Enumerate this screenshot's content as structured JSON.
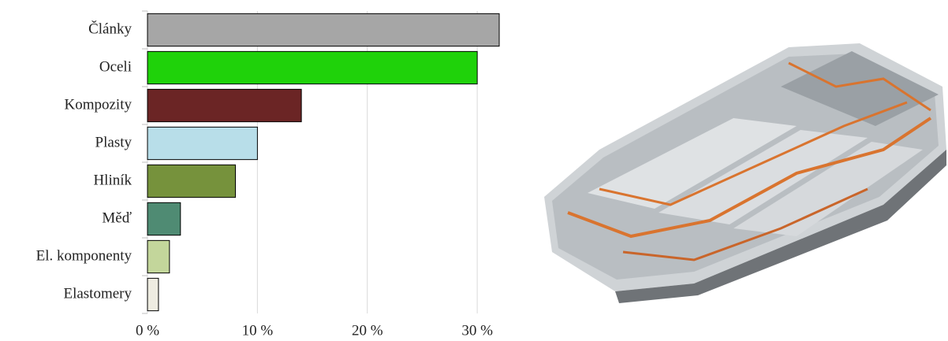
{
  "chart_data": {
    "type": "bar",
    "orientation": "horizontal",
    "categories": [
      "Články",
      "Oceli",
      "Kompozity",
      "Plasty",
      "Hliník",
      "Měď",
      "El. komponenty",
      "Elastomery"
    ],
    "values": [
      32,
      30,
      14,
      10,
      8,
      3,
      2,
      1
    ],
    "colors": [
      "#a6a6a6",
      "#1fd20a",
      "#6b2525",
      "#b8dee9",
      "#76923c",
      "#4f8b73",
      "#c3d69b",
      "#eeece1"
    ],
    "xlim": [
      0,
      32
    ],
    "xticks": [
      {
        "value": 0,
        "label": "0 %"
      },
      {
        "value": 10,
        "label": "10 %"
      },
      {
        "value": 20,
        "label": "20 %"
      },
      {
        "value": 30,
        "label": "30 %"
      }
    ],
    "grid": true
  }
}
